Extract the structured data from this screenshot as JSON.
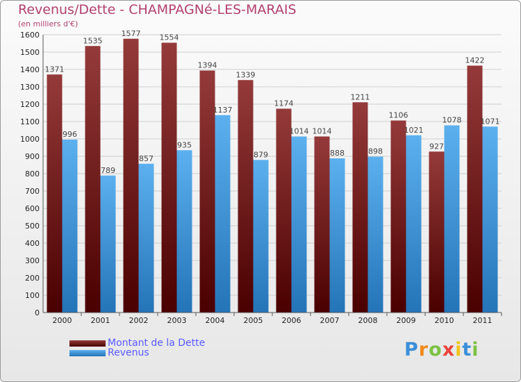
{
  "header": {
    "title": "Revenus/Dette - CHAMPAGNé-LES-MARAIS",
    "subtitle": "(en milliers d'€)"
  },
  "colors": {
    "title": "#b2406f",
    "debt_dark": "#4a0000",
    "debt_light": "#953a3a",
    "rev_dark": "#2474b8",
    "rev_light": "#5cb0ee",
    "legend_text": "#5a5aff"
  },
  "legend": {
    "debt_label": "Montant de la Dette",
    "revenue_label": "Revenus"
  },
  "logo": {
    "text": "Proxiti"
  },
  "chart_data": {
    "type": "bar",
    "title": "Revenus/Dette - CHAMPAGNé-LES-MARAIS",
    "subtitle": "(en milliers d'€)",
    "xlabel": "",
    "ylabel": "",
    "ylim": [
      0,
      1600
    ],
    "ytick_step": 100,
    "grid": true,
    "legend_position": "bottom-left",
    "categories": [
      "2000",
      "2001",
      "2002",
      "2003",
      "2004",
      "2005",
      "2006",
      "2007",
      "2008",
      "2009",
      "2010",
      "2011"
    ],
    "series": [
      {
        "name": "Montant de la Dette",
        "values": [
          1371,
          1535,
          1577,
          1554,
          1394,
          1339,
          1174,
          1014,
          1211,
          1106,
          927,
          1422
        ]
      },
      {
        "name": "Revenus",
        "values": [
          996,
          789,
          857,
          935,
          1137,
          879,
          1014,
          888,
          898,
          1021,
          1078,
          1071
        ]
      }
    ]
  }
}
